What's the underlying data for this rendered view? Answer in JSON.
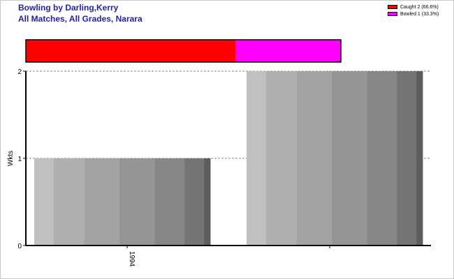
{
  "window": {
    "title_line1": "Bowling by Darling,Kerry",
    "title_line2": "All Matches, All Grades, Narara"
  },
  "legend": {
    "items": [
      {
        "label": "Caught 2 (66.6%)",
        "color": "#ff0000"
      },
      {
        "label": "Bowled 1 (33.3%)",
        "color": "#ff00ff"
      }
    ]
  },
  "chart_data": [
    {
      "type": "bar",
      "orientation": "horizontal",
      "stacked": true,
      "series": [
        {
          "name": "Caught",
          "value": 2,
          "percent": 66.6,
          "color": "#ff0000"
        },
        {
          "name": "Bowled",
          "value": 1,
          "percent": 33.3,
          "color": "#ff00ff"
        }
      ]
    },
    {
      "type": "bar",
      "categories": [
        "1994",
        ""
      ],
      "values": [
        1,
        2
      ],
      "ylabel": "Wkts",
      "ylim": [
        0,
        2
      ],
      "yticks": [
        "0",
        "1",
        "2"
      ],
      "grid": true
    }
  ]
}
